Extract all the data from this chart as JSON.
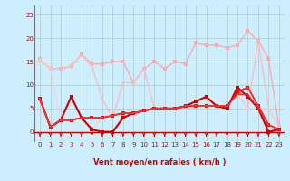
{
  "bg_color": "#cceeff",
  "grid_color": "#aacccc",
  "xlabel": "Vent moyen/en rafales ( km/h )",
  "xlabel_color": "#cc0000",
  "tick_color": "#cc0000",
  "ylim": [
    -2,
    27
  ],
  "xlim": [
    -0.5,
    23.5
  ],
  "yticks": [
    0,
    5,
    10,
    15,
    20,
    25
  ],
  "xticks": [
    0,
    1,
    2,
    3,
    4,
    5,
    6,
    7,
    8,
    9,
    10,
    11,
    12,
    13,
    14,
    15,
    16,
    17,
    18,
    19,
    20,
    21,
    22,
    23
  ],
  "lines": [
    {
      "y": [
        15.5,
        13.5,
        13.5,
        14.0,
        16.5,
        14.5,
        14.5,
        15.0,
        15.0,
        10.5,
        13.5,
        15.0,
        13.5,
        15.0,
        14.5,
        19.0,
        18.5,
        18.5,
        18.0,
        18.5,
        21.5,
        19.5,
        15.5,
        1.0
      ],
      "color": "#ffaaaa",
      "lw": 1.0,
      "ms": 2.5
    },
    {
      "y": [
        15.5,
        13.5,
        13.5,
        14.0,
        16.5,
        14.0,
        7.0,
        3.0,
        10.5,
        10.5,
        13.5,
        5.0,
        5.0,
        5.0,
        5.0,
        5.5,
        5.5,
        5.5,
        5.5,
        8.0,
        5.0,
        19.5,
        5.0,
        1.0
      ],
      "color": "#ffbbbb",
      "lw": 1.0,
      "ms": 2.0
    },
    {
      "y": [
        15.5,
        13.5,
        2.5,
        2.5,
        3.0,
        0.5,
        3.0,
        3.5,
        3.5,
        3.5,
        4.5,
        5.0,
        5.0,
        5.0,
        5.0,
        5.5,
        5.5,
        5.5,
        5.5,
        8.0,
        5.0,
        5.0,
        5.0,
        1.0
      ],
      "color": "#ffcccc",
      "lw": 0.8,
      "ms": 2.0
    },
    {
      "y": [
        7.0,
        1.0,
        2.5,
        7.5,
        3.0,
        0.5,
        0.0,
        0.0,
        3.0,
        4.0,
        4.5,
        5.0,
        5.0,
        5.0,
        5.5,
        6.5,
        7.5,
        5.5,
        5.0,
        9.5,
        7.5,
        5.0,
        0.0,
        0.5
      ],
      "color": "#cc0000",
      "lw": 1.5,
      "ms": 3.0
    },
    {
      "y": [
        7.0,
        1.0,
        2.5,
        2.5,
        3.0,
        3.0,
        3.0,
        3.5,
        4.0,
        4.0,
        4.5,
        5.0,
        5.0,
        5.0,
        5.5,
        5.5,
        5.5,
        5.5,
        5.5,
        8.5,
        9.5,
        5.5,
        1.5,
        0.5
      ],
      "color": "#dd1111",
      "lw": 1.2,
      "ms": 2.5
    },
    {
      "y": [
        7.0,
        1.0,
        2.5,
        2.5,
        3.0,
        3.0,
        3.0,
        3.5,
        4.0,
        4.0,
        4.5,
        5.0,
        5.0,
        5.0,
        5.5,
        5.5,
        5.5,
        5.5,
        5.5,
        8.0,
        8.0,
        5.0,
        1.5,
        0.5
      ],
      "color": "#ee2222",
      "lw": 1.0,
      "ms": 2.0
    },
    {
      "y": [
        7.0,
        1.0,
        2.5,
        2.5,
        3.0,
        3.0,
        3.0,
        3.5,
        4.0,
        4.0,
        4.5,
        5.0,
        5.0,
        5.0,
        5.5,
        5.5,
        5.5,
        5.5,
        5.5,
        8.0,
        9.5,
        5.5,
        1.5,
        0.5
      ],
      "color": "#ff3333",
      "lw": 0.8,
      "ms": 2.0
    }
  ],
  "arrow_color": "#cc0000",
  "bottom_line_color": "#cc0000"
}
